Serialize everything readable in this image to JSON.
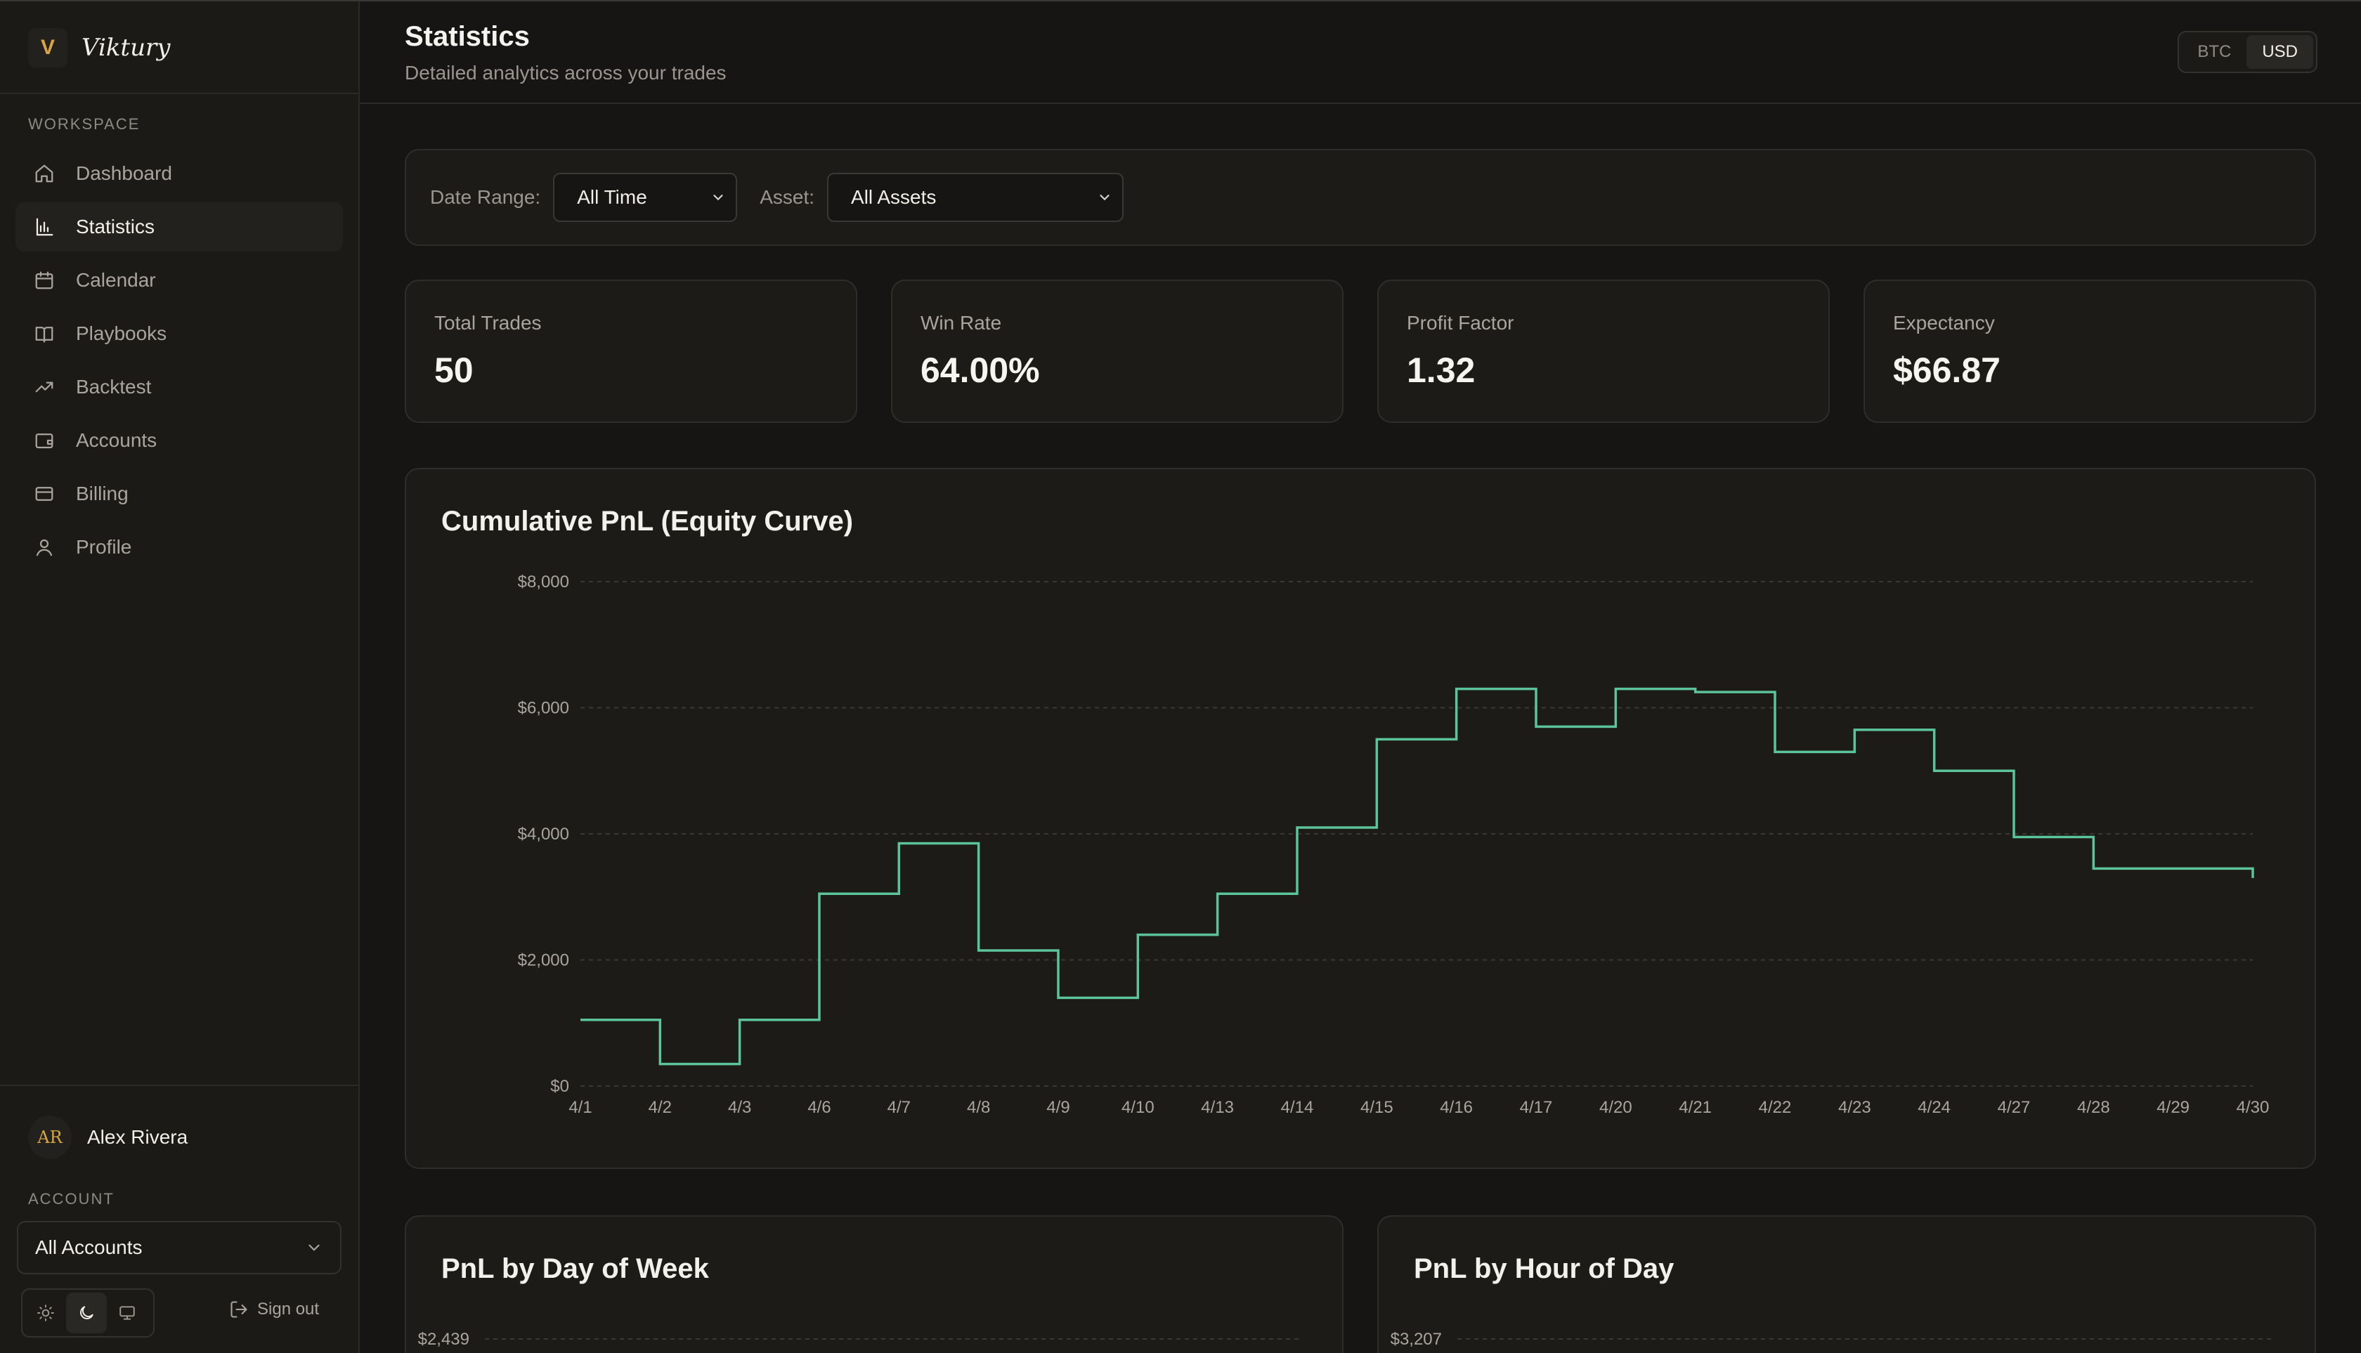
{
  "brand": {
    "logo": "V",
    "name": "Viktury"
  },
  "sidebar": {
    "section_label": "Workspace",
    "items": [
      {
        "label": "Dashboard",
        "icon": "home-icon",
        "active": false
      },
      {
        "label": "Statistics",
        "icon": "bar-chart-icon",
        "active": true
      },
      {
        "label": "Calendar",
        "icon": "calendar-icon",
        "active": false
      },
      {
        "label": "Playbooks",
        "icon": "book-icon",
        "active": false
      },
      {
        "label": "Backtest",
        "icon": "trending-up-icon",
        "active": false
      },
      {
        "label": "Accounts",
        "icon": "wallet-icon",
        "active": false
      },
      {
        "label": "Billing",
        "icon": "credit-card-icon",
        "active": false
      },
      {
        "label": "Profile",
        "icon": "user-icon",
        "active": false
      }
    ],
    "user": {
      "initials": "AR",
      "name": "Alex Rivera"
    },
    "account_label": "Account",
    "account_value": "All Accounts",
    "sign_out": "Sign out"
  },
  "header": {
    "title": "Statistics",
    "subtitle": "Detailed analytics across your trades",
    "currency": {
      "options": [
        "BTC",
        "USD"
      ],
      "selected": "USD"
    }
  },
  "filters": {
    "date_range_label": "Date Range:",
    "date_range_value": "All Time",
    "asset_label": "Asset:",
    "asset_value": "All Assets"
  },
  "stats": [
    {
      "label": "Total Trades",
      "value": "50"
    },
    {
      "label": "Win Rate",
      "value": "64.00%"
    },
    {
      "label": "Profit Factor",
      "value": "1.32"
    },
    {
      "label": "Expectancy",
      "value": "$66.87"
    }
  ],
  "colors": {
    "accent": "#5cc49a",
    "background": "#161513",
    "card": "#1c1b18",
    "brand": "#d9a441"
  },
  "chart_data": [
    {
      "type": "line",
      "step": true,
      "title": "Cumulative PnL (Equity Curve)",
      "categories": [
        "4/1",
        "4/2",
        "4/3",
        "4/6",
        "4/7",
        "4/8",
        "4/9",
        "4/10",
        "4/13",
        "4/14",
        "4/15",
        "4/16",
        "4/17",
        "4/20",
        "4/21",
        "4/22",
        "4/23",
        "4/24",
        "4/27",
        "4/28",
        "4/29",
        "4/30"
      ],
      "values": [
        1050,
        350,
        1050,
        3050,
        3850,
        2150,
        1400,
        2400,
        3050,
        4100,
        5500,
        6300,
        5700,
        6300,
        6250,
        5300,
        5650,
        5000,
        3950,
        3450,
        3450,
        3300
      ],
      "ylim": [
        0,
        8000
      ],
      "yticks": [
        "$0",
        "$2,000",
        "$4,000",
        "$6,000",
        "$8,000"
      ],
      "grid": true,
      "color": "#5cc49a"
    },
    {
      "type": "bar",
      "title": "PnL by Day of Week",
      "ytick_top": "$2,439"
    },
    {
      "type": "bar",
      "title": "PnL by Hour of Day",
      "ytick_top": "$3,207"
    }
  ]
}
